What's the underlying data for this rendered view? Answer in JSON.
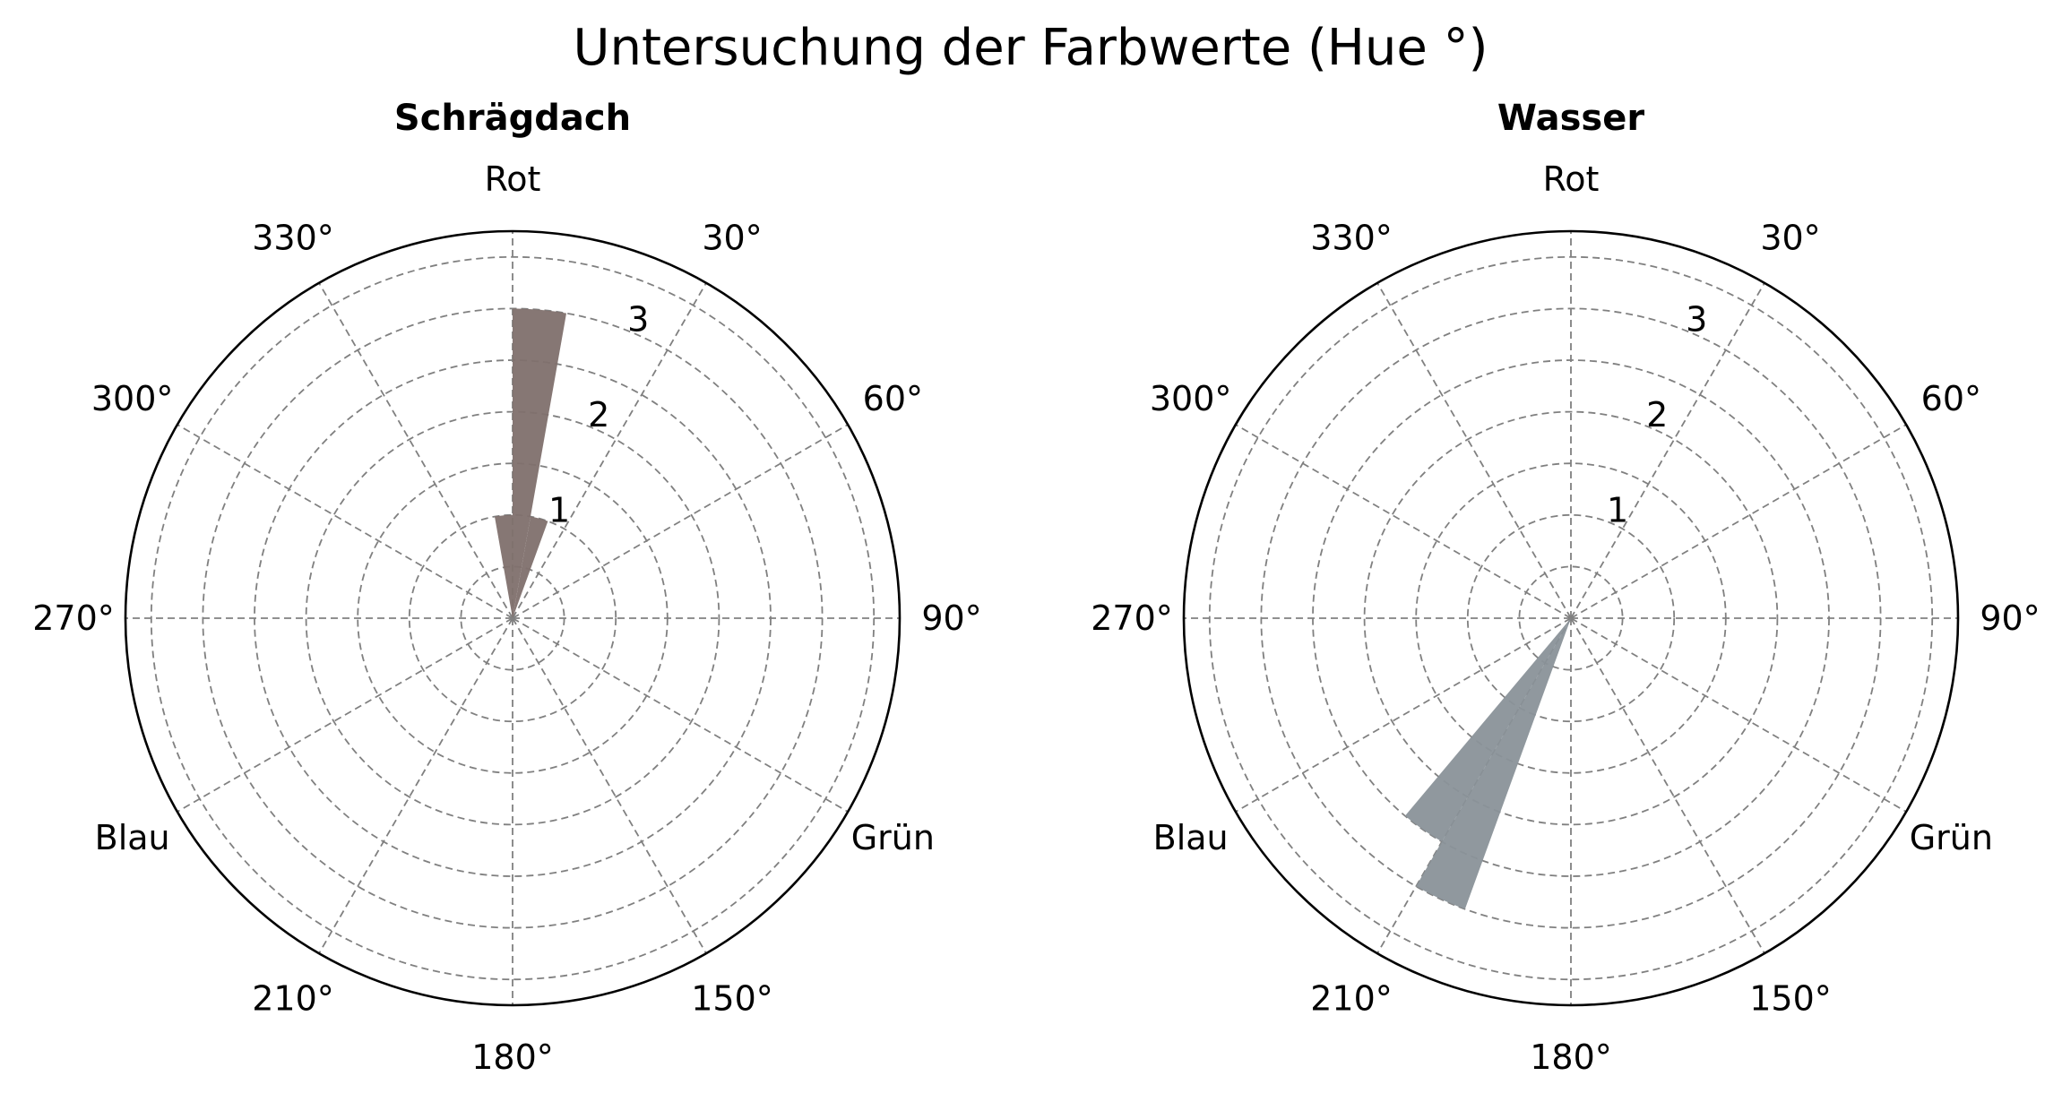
{
  "figure_title": "Untersuchung der Farbwerte (Hue °)",
  "chart_data": [
    {
      "type": "polar-bar",
      "title": "Schrägdach",
      "theta_direction": "clockwise",
      "theta_zero": "top",
      "theta_labels": [
        "Rot",
        "30°",
        "60°",
        "90°",
        "Grün",
        "150°",
        "180°",
        "210°",
        "Blau",
        "270°",
        "300°",
        "330°"
      ],
      "r_ticks": [
        1,
        2,
        3
      ],
      "r_lim": [
        0,
        3.75
      ],
      "grid": true,
      "color": "#7f706d",
      "bins": [
        {
          "start_deg": 350,
          "end_deg": 360,
          "count": 1
        },
        {
          "start_deg": 0,
          "end_deg": 10,
          "count": 3
        },
        {
          "start_deg": 10,
          "end_deg": 20,
          "count": 1
        }
      ]
    },
    {
      "type": "polar-bar",
      "title": "Wasser",
      "theta_direction": "clockwise",
      "theta_zero": "top",
      "theta_labels": [
        "Rot",
        "30°",
        "60°",
        "90°",
        "Grün",
        "150°",
        "180°",
        "210°",
        "Blau",
        "270°",
        "300°",
        "330°"
      ],
      "r_ticks": [
        1,
        2,
        3
      ],
      "r_lim": [
        0,
        3.75
      ],
      "grid": true,
      "color": "#8a9299",
      "bins": [
        {
          "start_deg": 200,
          "end_deg": 210,
          "count": 3
        },
        {
          "start_deg": 210,
          "end_deg": 220,
          "count": 2.5
        }
      ]
    }
  ]
}
